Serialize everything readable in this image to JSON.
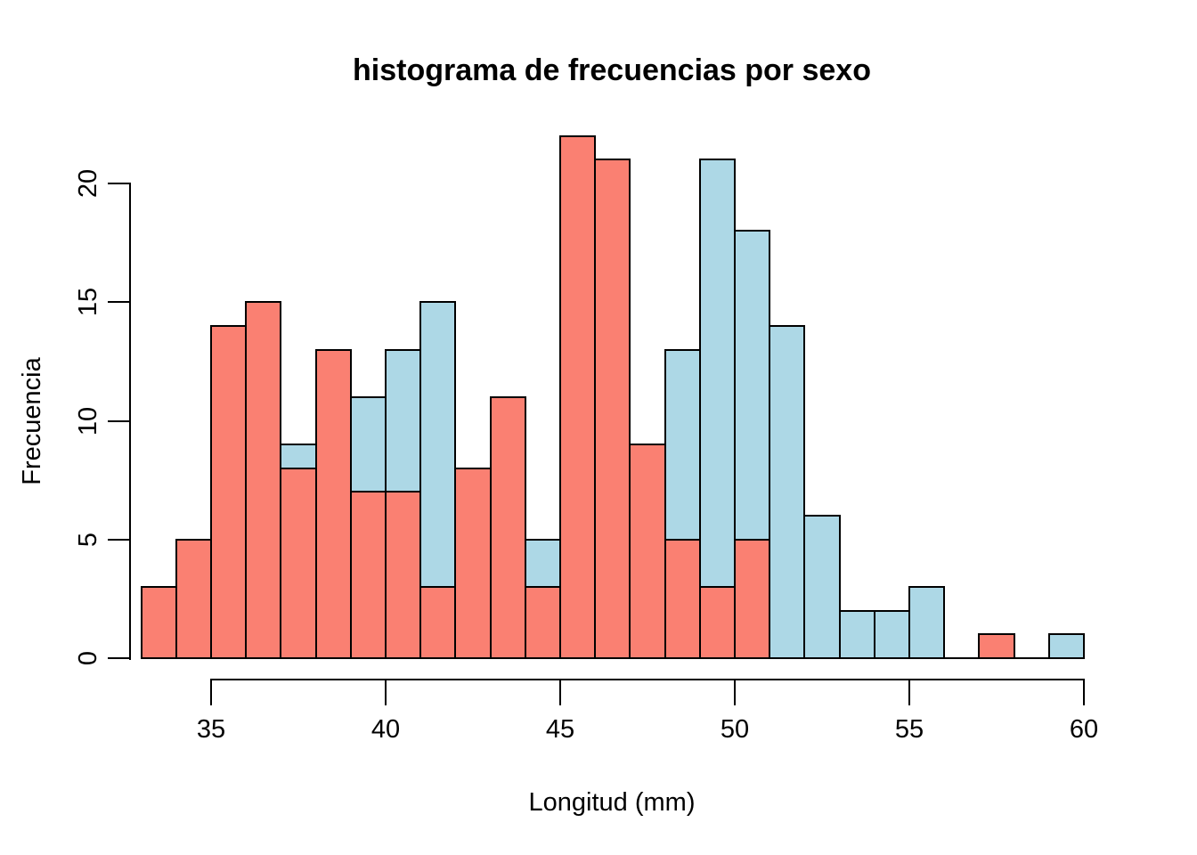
{
  "title": "histograma de frecuencias por sexo",
  "chart_data": {
    "type": "bar",
    "subtype": "overlaid-histogram",
    "title": "histograma de frecuencias por sexo",
    "xlabel": "Longitud (mm)",
    "ylabel": "Frecuencia",
    "bin_start": 33,
    "bin_width": 1,
    "bin_edges": [
      33,
      34,
      35,
      36,
      37,
      38,
      39,
      40,
      41,
      42,
      43,
      44,
      45,
      46,
      47,
      48,
      49,
      50,
      51,
      52,
      53,
      54,
      55,
      56,
      57,
      58,
      59,
      60
    ],
    "x_ticks": [
      35,
      40,
      45,
      50,
      55,
      60
    ],
    "y_ticks": [
      0,
      5,
      10,
      15,
      20
    ],
    "xlim": [
      33,
      60
    ],
    "ylim": [
      0,
      22
    ],
    "grid": false,
    "legend": false,
    "background_color": "#FFFFFF",
    "axis_color": "#000000",
    "bar_border_color": "#000000",
    "series": [
      {
        "name": "lightblue-series",
        "color": "#ADD8E6",
        "draw_order": "behind",
        "values": [
          0,
          0,
          0,
          0,
          9,
          0,
          11,
          13,
          15,
          0,
          0,
          5,
          0,
          0,
          0,
          13,
          21,
          18,
          14,
          6,
          2,
          2,
          3,
          0,
          0,
          0,
          1
        ]
      },
      {
        "name": "salmon-series",
        "color": "#FA8072",
        "draw_order": "front",
        "values": [
          3,
          5,
          14,
          15,
          8,
          13,
          7,
          7,
          3,
          8,
          11,
          3,
          22,
          21,
          9,
          5,
          3,
          5,
          0,
          0,
          0,
          0,
          0,
          0,
          1,
          0,
          0
        ]
      }
    ]
  }
}
